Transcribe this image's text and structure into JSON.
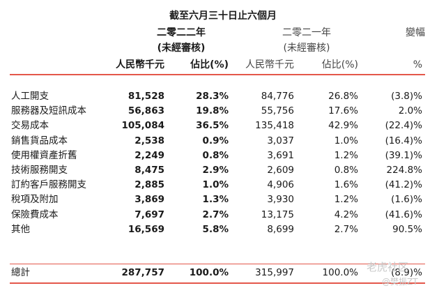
{
  "period": "截至六月三十日止六個月",
  "headers": {
    "year_2022": "二零二二年",
    "year_2022_note": "(未經審核)",
    "year_2021": "二零二一年",
    "year_2021_note": "(未經審核)",
    "change": "變幅",
    "unit_2022": "人民幣千元",
    "pct_2022": "佔比(%)",
    "unit_2021": "人民幣千元",
    "pct_2021": "佔比(%)",
    "change_unit": "%"
  },
  "rows": [
    {
      "label": "人工開支",
      "v2022": "81,528",
      "p2022": "28.3%",
      "v2021": "84,776",
      "p2021": "26.8%",
      "change": "(3.8)%"
    },
    {
      "label": "服務器及短訊成本",
      "v2022": "56,863",
      "p2022": "19.8%",
      "v2021": "55,756",
      "p2021": "17.6%",
      "change": "2.0%"
    },
    {
      "label": "交易成本",
      "v2022": "105,084",
      "p2022": "36.5%",
      "v2021": "135,418",
      "p2021": "42.9%",
      "change": "(22.4)%"
    },
    {
      "label": "銷售貨品成本",
      "v2022": "2,538",
      "p2022": "0.9%",
      "v2021": "3,037",
      "p2021": "1.0%",
      "change": "(16.4)%"
    },
    {
      "label": "使用權資產折舊",
      "v2022": "2,249",
      "p2022": "0.8%",
      "v2021": "3,691",
      "p2021": "1.2%",
      "change": "(39.1)%"
    },
    {
      "label": "技術服務開支",
      "v2022": "8,475",
      "p2022": "2.9%",
      "v2021": "2,609",
      "p2021": "0.8%",
      "change": "224.8%"
    },
    {
      "label": "訂約客戶服務開支",
      "v2022": "2,885",
      "p2022": "1.0%",
      "v2021": "4,906",
      "p2021": "1.6%",
      "change": "(41.2)%"
    },
    {
      "label": "稅項及附加",
      "v2022": "3,869",
      "p2022": "1.3%",
      "v2021": "3,930",
      "p2021": "1.2%",
      "change": "(1.6)%"
    },
    {
      "label": "保險費成本",
      "v2022": "7,697",
      "p2022": "2.7%",
      "v2021": "13,175",
      "p2021": "4.2%",
      "change": "(41.6)%"
    },
    {
      "label": "其他",
      "v2022": "16,569",
      "p2022": "5.8%",
      "v2021": "8,699",
      "p2021": "2.7%",
      "change": "90.5%"
    }
  ],
  "total": {
    "label": "總計",
    "v2022": "287,757",
    "p2022": "100.0%",
    "v2021": "315,997",
    "p2021": "100.0%",
    "change": "(8.9)%"
  },
  "watermark": {
    "line1": "老虎社区",
    "line2": "@樊振ZT"
  },
  "colors": {
    "rule": "#e4574a",
    "text": "#1a1a1a",
    "muted": "#444444"
  }
}
